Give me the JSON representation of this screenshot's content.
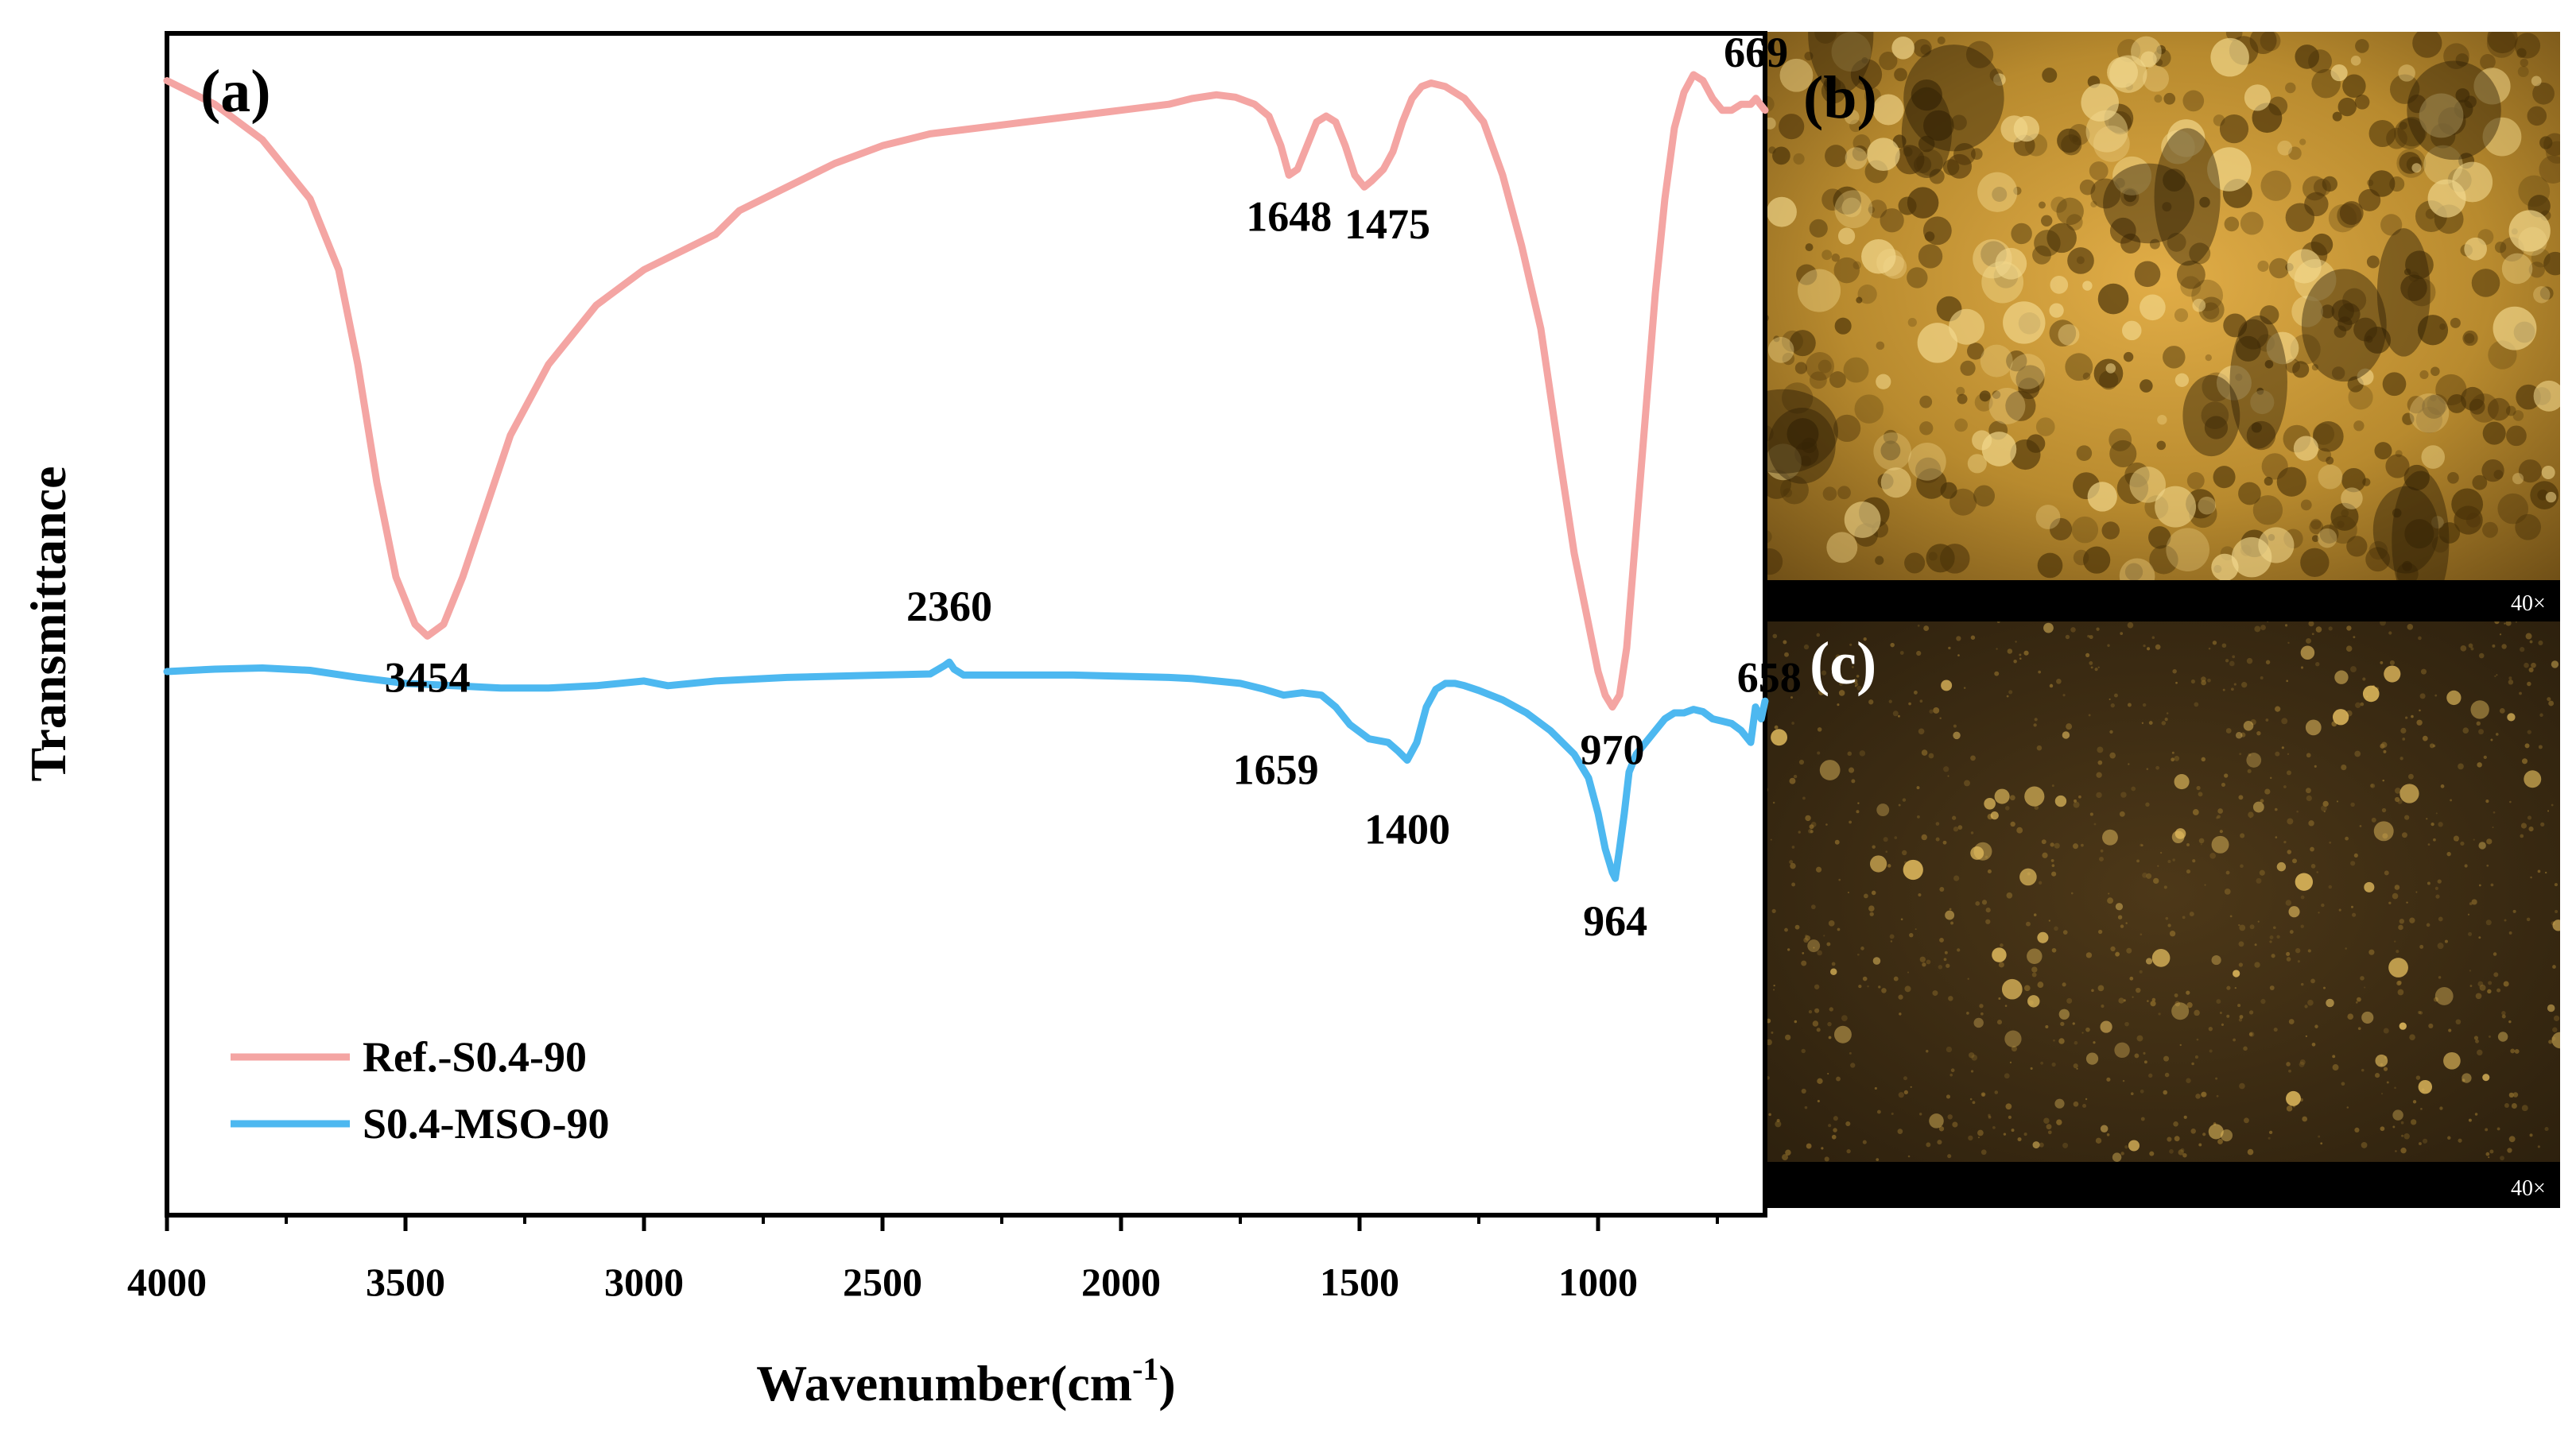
{
  "figure": {
    "panel_labels": {
      "a": "(a)",
      "b": "(b)",
      "c": "(c)"
    },
    "magnification": {
      "b": "40×",
      "c": "40×"
    }
  },
  "chart_data": {
    "type": "line",
    "title": "",
    "xlabel": "Wavenumber(cm",
    "xlabel_sup": "-1",
    "xlabel_close": ")",
    "ylabel": "Transmittance",
    "xlim": [
      4000,
      650
    ],
    "x_reversed": true,
    "ylim": [
      0,
      1
    ],
    "y_ticks_shown": false,
    "x_ticks": [
      4000,
      3500,
      3000,
      2500,
      2000,
      1500,
      1000
    ],
    "x_tick_labels": [
      "4000",
      "3500",
      "3000",
      "2500",
      "2000",
      "1500",
      "1000"
    ],
    "colors": {
      "ref": "#f4a5a3",
      "mso": "#4db8f0"
    },
    "series": [
      {
        "name": "Ref.-S0.4-90",
        "color": "#f4a5a3",
        "x": [
          4000,
          3900,
          3800,
          3700,
          3640,
          3600,
          3560,
          3520,
          3480,
          3454,
          3420,
          3380,
          3330,
          3280,
          3200,
          3100,
          3000,
          2950,
          2900,
          2850,
          2800,
          2700,
          2600,
          2500,
          2400,
          2300,
          2200,
          2100,
          2000,
          1900,
          1850,
          1800,
          1760,
          1720,
          1690,
          1665,
          1648,
          1630,
          1610,
          1590,
          1570,
          1550,
          1530,
          1510,
          1490,
          1475,
          1450,
          1430,
          1410,
          1390,
          1370,
          1350,
          1320,
          1280,
          1240,
          1200,
          1160,
          1120,
          1080,
          1050,
          1020,
          1000,
          985,
          970,
          955,
          940,
          920,
          900,
          880,
          860,
          840,
          820,
          800,
          780,
          760,
          740,
          720,
          700,
          680,
          669,
          660,
          650
        ],
        "y": [
          0.96,
          0.94,
          0.91,
          0.86,
          0.8,
          0.72,
          0.62,
          0.54,
          0.5,
          0.49,
          0.5,
          0.54,
          0.6,
          0.66,
          0.72,
          0.77,
          0.8,
          0.81,
          0.82,
          0.83,
          0.85,
          0.87,
          0.89,
          0.905,
          0.915,
          0.92,
          0.925,
          0.93,
          0.935,
          0.94,
          0.945,
          0.948,
          0.946,
          0.94,
          0.93,
          0.905,
          0.88,
          0.885,
          0.905,
          0.925,
          0.93,
          0.925,
          0.905,
          0.88,
          0.87,
          0.875,
          0.885,
          0.9,
          0.925,
          0.945,
          0.955,
          0.958,
          0.955,
          0.945,
          0.925,
          0.88,
          0.82,
          0.75,
          0.64,
          0.56,
          0.5,
          0.46,
          0.44,
          0.43,
          0.44,
          0.48,
          0.58,
          0.68,
          0.78,
          0.86,
          0.92,
          0.95,
          0.965,
          0.96,
          0.945,
          0.935,
          0.935,
          0.94,
          0.94,
          0.945,
          0.94,
          0.935
        ]
      },
      {
        "name": "S0.4-MSO-90",
        "color": "#4db8f0",
        "x": [
          4000,
          3900,
          3800,
          3700,
          3600,
          3500,
          3400,
          3300,
          3200,
          3100,
          3000,
          2950,
          2900,
          2850,
          2800,
          2700,
          2600,
          2500,
          2400,
          2370,
          2360,
          2350,
          2330,
          2300,
          2200,
          2100,
          2000,
          1900,
          1850,
          1800,
          1750,
          1700,
          1659,
          1620,
          1580,
          1550,
          1520,
          1480,
          1440,
          1420,
          1400,
          1380,
          1360,
          1340,
          1320,
          1300,
          1280,
          1250,
          1200,
          1150,
          1100,
          1050,
          1020,
          1000,
          985,
          970,
          964,
          955,
          945,
          935,
          920,
          900,
          880,
          860,
          840,
          820,
          800,
          780,
          760,
          740,
          720,
          700,
          680,
          670,
          658,
          650
        ],
        "y": [
          0.46,
          0.462,
          0.463,
          0.461,
          0.455,
          0.45,
          0.448,
          0.446,
          0.446,
          0.448,
          0.452,
          0.448,
          0.45,
          0.452,
          0.453,
          0.455,
          0.456,
          0.457,
          0.458,
          0.465,
          0.468,
          0.462,
          0.457,
          0.457,
          0.457,
          0.457,
          0.456,
          0.455,
          0.454,
          0.452,
          0.45,
          0.445,
          0.44,
          0.442,
          0.44,
          0.43,
          0.415,
          0.403,
          0.4,
          0.393,
          0.385,
          0.4,
          0.43,
          0.445,
          0.45,
          0.45,
          0.448,
          0.444,
          0.436,
          0.425,
          0.41,
          0.39,
          0.37,
          0.34,
          0.31,
          0.29,
          0.285,
          0.31,
          0.34,
          0.375,
          0.39,
          0.4,
          0.41,
          0.42,
          0.425,
          0.425,
          0.428,
          0.426,
          0.42,
          0.418,
          0.416,
          0.41,
          0.4,
          0.43,
          0.42,
          0.435
        ]
      }
    ],
    "annotations": [
      {
        "text": "3454",
        "series": "Ref.-S0.4-90",
        "x": 3454
      },
      {
        "text": "1648",
        "series": "Ref.-S0.4-90",
        "x": 1648
      },
      {
        "text": "1475",
        "series": "Ref.-S0.4-90",
        "x": 1475
      },
      {
        "text": "970",
        "series": "Ref.-S0.4-90",
        "x": 970
      },
      {
        "text": "669",
        "series": "Ref.-S0.4-90",
        "x": 669
      },
      {
        "text": "2360",
        "series": "S0.4-MSO-90",
        "x": 2360
      },
      {
        "text": "1659",
        "series": "S0.4-MSO-90",
        "x": 1659
      },
      {
        "text": "1400",
        "series": "S0.4-MSO-90",
        "x": 1400
      },
      {
        "text": "964",
        "series": "S0.4-MSO-90",
        "x": 964
      },
      {
        "text": "658",
        "series": "S0.4-MSO-90",
        "x": 658
      }
    ],
    "legend": {
      "placement": "bottom-left",
      "entries": [
        "Ref.-S0.4-90",
        "S0.4-MSO-90"
      ]
    }
  }
}
